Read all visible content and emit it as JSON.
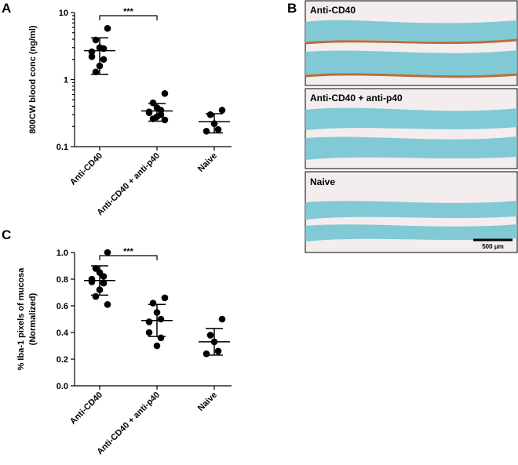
{
  "chart_data": [
    {
      "type": "dot",
      "panel": "A",
      "ylabel": [
        "800CW blood conc (ng/ml)"
      ],
      "log": true,
      "categories": [
        "Anti-CD40",
        "Anti-CD40 + anti-p40",
        "Naive"
      ],
      "values": [
        [
          5.8,
          3.9,
          3.0,
          2.9,
          2.6,
          2.2,
          2.0,
          1.6,
          1.3
        ],
        [
          0.62,
          0.45,
          0.38,
          0.35,
          0.33,
          0.32,
          0.3,
          0.28,
          0.26,
          0.25
        ],
        [
          0.35,
          0.3,
          0.22,
          0.18,
          0.17
        ]
      ],
      "means": [
        2.7,
        0.34,
        0.235
      ],
      "sds": [
        1.5,
        0.1,
        0.075
      ],
      "color": "#000000",
      "significance": "***",
      "ylim": [
        0.1,
        10
      ],
      "yticks": [
        0.1,
        1,
        10
      ]
    },
    {
      "type": "dot",
      "panel": "C",
      "ylabel": [
        "% Iba-1 pixels of mucosa",
        "(Normalized)"
      ],
      "log": false,
      "categories": [
        "Anti-CD40",
        "Anti-CD40 + anti-p40",
        "Naive"
      ],
      "values": [
        [
          1.0,
          0.88,
          0.85,
          0.82,
          0.8,
          0.78,
          0.77,
          0.72,
          0.67,
          0.61
        ],
        [
          0.66,
          0.62,
          0.55,
          0.5,
          0.48,
          0.4,
          0.36,
          0.3
        ],
        [
          0.5,
          0.38,
          0.33,
          0.26,
          0.24
        ]
      ],
      "means": [
        0.79,
        0.49,
        0.33
      ],
      "sds": [
        0.11,
        0.12,
        0.1
      ],
      "color": "#000000",
      "significance": "***",
      "ylim": [
        0,
        1
      ],
      "yticks": [
        {
          "value": 0,
          "label": "0.0"
        },
        0.2,
        0.4,
        0.6,
        0.8,
        {
          "value": 1,
          "label": "1.0"
        }
      ]
    }
  ],
  "image_panel": {
    "panel": "B",
    "images": [
      {
        "label": "Anti-CD40"
      },
      {
        "label": "Anti-CD40 + anti-p40"
      },
      {
        "label": "Naive"
      }
    ],
    "scale_bar": "500 μm"
  }
}
